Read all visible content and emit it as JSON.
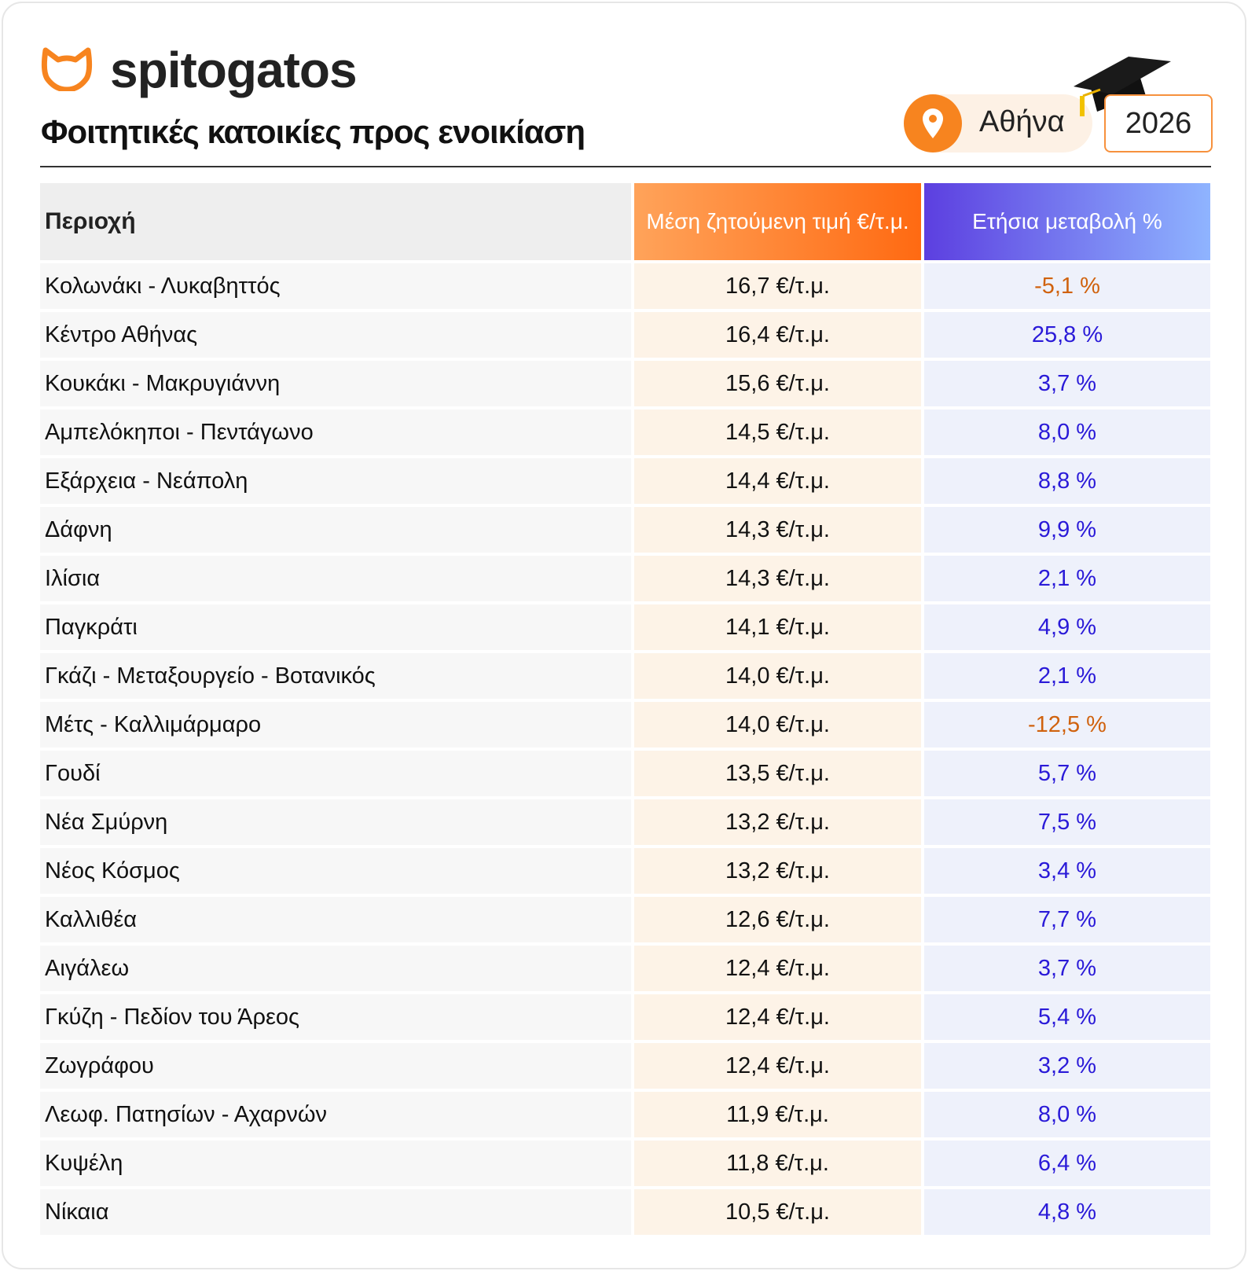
{
  "header": {
    "logo": "spitogatos",
    "title": "Φοιτητικές κατοικίες προς ενοικίαση",
    "location": "Αθήνα",
    "year": "2026"
  },
  "table": {
    "columns": [
      "Περιοχή",
      "Μέση ζητούμενη τιμή €/τ.μ.",
      "Ετήσια μεταβολή %"
    ],
    "rows": [
      [
        "Κολωνάκι - Λυκαβηττός",
        "16,7 €/τ.μ.",
        "-5,1 %"
      ],
      [
        "Κέντρο Αθήνας",
        "16,4 €/τ.μ.",
        "25,8 %"
      ],
      [
        "Κουκάκι - Μακρυγιάννη",
        "15,6 €/τ.μ.",
        "3,7 %"
      ],
      [
        "Αμπελόκηποι - Πεντάγωνο",
        "14,5 €/τ.μ.",
        "8,0 %"
      ],
      [
        "Εξάρχεια - Νεάπολη",
        "14,4 €/τ.μ.",
        "8,8 %"
      ],
      [
        "Δάφνη",
        "14,3 €/τ.μ.",
        "9,9 %"
      ],
      [
        "Ιλίσια",
        "14,3 €/τ.μ.",
        "2,1 %"
      ],
      [
        "Παγκράτι",
        "14,1 €/τ.μ.",
        "4,9 %"
      ],
      [
        "Γκάζι - Μεταξουργείο -  Βοτανικός",
        "14,0 €/τ.μ.",
        "2,1 %"
      ],
      [
        "Μέτς - Καλλιμάρμαρο",
        "14,0 €/τ.μ.",
        "-12,5 %"
      ],
      [
        "Γουδί",
        "13,5 €/τ.μ.",
        "5,7 %"
      ],
      [
        "Νέα Σμύρνη",
        "13,2 €/τ.μ.",
        "7,5 %"
      ],
      [
        "Νέος Κόσμος",
        "13,2 €/τ.μ.",
        "3,4 %"
      ],
      [
        "Καλλιθέα",
        "12,6 €/τ.μ.",
        "7,7 %"
      ],
      [
        "Αιγάλεω",
        "12,4 €/τ.μ.",
        "3,7 %"
      ],
      [
        "Γκύζη - Πεδίον του Άρεος",
        "12,4 €/τ.μ.",
        "5,4 %"
      ],
      [
        "Ζωγράφου",
        "12,4 €/τ.μ.",
        "3,2 %"
      ],
      [
        "Λεωφ.  Πατησίων - Αχαρνών",
        "11,9 €/τ.μ.",
        "8,0 %"
      ],
      [
        "Κυψέλη",
        "11,8 €/τ.μ.",
        "6,4 %"
      ],
      [
        "Νίκαια",
        "10,5 €/τ.μ.",
        "4,8 %"
      ]
    ]
  }
}
